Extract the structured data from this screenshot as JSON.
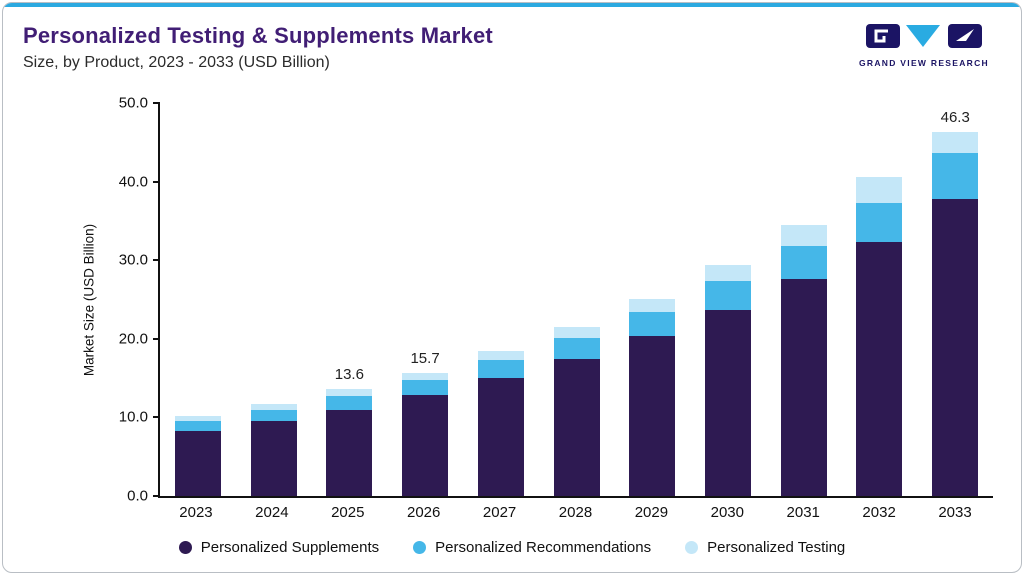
{
  "header": {
    "title": "Personalized Testing & Supplements Market",
    "subtitle": "Size, by Product, 2023 - 2033 (USD Billion)",
    "logo_text": "GRAND VIEW RESEARCH"
  },
  "colors": {
    "accent_line": "#2BA9E0",
    "title_text": "#411E75",
    "logo_navy": "#1B1464",
    "logo_cyan": "#29ABE2",
    "axis": "#111111"
  },
  "chart_data": {
    "type": "bar",
    "stacked": true,
    "title": "Personalized Testing & Supplements Market",
    "subtitle": "Size, by Product, 2023 - 2033 (USD Billion)",
    "xlabel": "",
    "ylabel": "Market Size (USD Billion)",
    "ylim": [
      0,
      50
    ],
    "yticks": [
      0,
      10,
      20,
      30,
      40,
      50
    ],
    "grid": false,
    "legend_position": "bottom",
    "categories": [
      "2023",
      "2024",
      "2025",
      "2026",
      "2027",
      "2028",
      "2029",
      "2030",
      "2031",
      "2032",
      "2033"
    ],
    "series": [
      {
        "name": "Personalized Supplements",
        "color": "#2E1A52",
        "values": [
          8.3,
          9.5,
          11.0,
          12.8,
          15.0,
          17.4,
          20.3,
          23.7,
          27.6,
          32.3,
          37.8
        ]
      },
      {
        "name": "Personalized Recommendations",
        "color": "#45B7E8",
        "values": [
          1.2,
          1.4,
          1.7,
          1.9,
          2.3,
          2.7,
          3.1,
          3.6,
          4.2,
          5.0,
          5.9
        ]
      },
      {
        "name": "Personalized Testing",
        "color": "#C4E7F8",
        "values": [
          0.7,
          0.8,
          0.9,
          1.0,
          1.2,
          1.4,
          1.7,
          2.1,
          2.7,
          3.3,
          2.6
        ]
      }
    ],
    "totals_labeled": {
      "2025": "13.6",
      "2026": "15.7",
      "2033": "46.3"
    }
  },
  "legend": [
    {
      "label": "Personalized Supplements",
      "color": "#2E1A52"
    },
    {
      "label": "Personalized Recommendations",
      "color": "#45B7E8"
    },
    {
      "label": "Personalized Testing",
      "color": "#C4E7F8"
    }
  ]
}
